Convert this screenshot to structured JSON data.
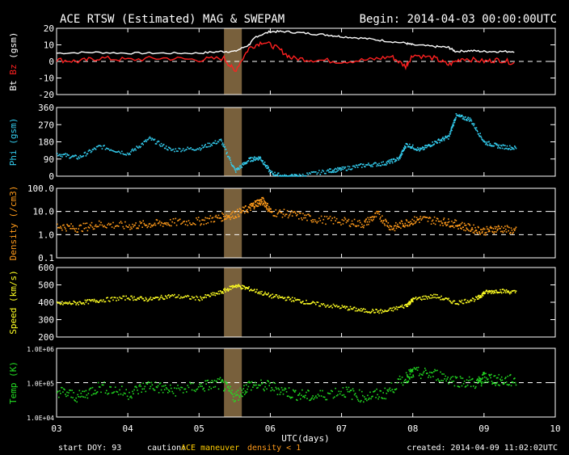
{
  "header": {
    "title": "ACE RTSW (Estimated) MAG & SWEPAM",
    "begin": "Begin: 2014-04-03 00:00:00UTC"
  },
  "footer": {
    "start_doy": "start DOY:  93",
    "caution_label": "caution:",
    "caution_maneuver": "ACE maneuver",
    "caution_density": "density < 1",
    "created": "created: 2014-04-09 11:02:02UTC",
    "xlabel": "UTC(days)"
  },
  "colors": {
    "bt": "#ffffff",
    "bz": "#ff2020",
    "phi": "#33ccee",
    "density": "#ff9a1a",
    "speed": "#ffff22",
    "temp": "#22dd22",
    "maneuver": "#a08050",
    "caution": "#ffcc00"
  },
  "chart_data": [
    {
      "type": "line",
      "panel": "mag",
      "ylabel_parts": [
        "Bt",
        "Bz",
        "(gsm)"
      ],
      "ylim": [
        -20,
        20
      ],
      "ytick_labels": [
        "20",
        "10",
        "0",
        "-10",
        "-20"
      ],
      "dashed_refs": [
        0
      ],
      "series": [
        {
          "name": "Bt",
          "color_key": "bt",
          "x": [
            3.0,
            3.5,
            4.0,
            4.5,
            5.0,
            5.3,
            5.5,
            5.7,
            5.8,
            6.0,
            6.2,
            6.5,
            6.8,
            7.0,
            7.3,
            7.6,
            7.9,
            8.0,
            8.3,
            8.5,
            8.6,
            8.8,
            9.0,
            9.2,
            9.45
          ],
          "y": [
            5,
            5.5,
            5,
            5,
            5,
            6,
            6,
            10,
            15,
            18,
            18,
            17,
            16,
            15,
            14,
            12.5,
            11,
            10,
            9,
            8.5,
            6,
            6.5,
            6,
            6,
            6
          ]
        },
        {
          "name": "Bz",
          "color_key": "bz",
          "x": [
            3.0,
            3.3,
            3.6,
            4.0,
            4.5,
            5.0,
            5.35,
            5.5,
            5.7,
            5.9,
            6.1,
            6.3,
            6.6,
            7.0,
            7.4,
            7.7,
            7.9,
            8.0,
            8.3,
            8.5,
            8.7,
            9.0,
            9.2,
            9.45
          ],
          "y": [
            1,
            0,
            2,
            1,
            2,
            1,
            2,
            -6,
            8,
            12,
            8,
            2,
            1,
            0,
            1,
            3,
            -3,
            4,
            2,
            -2,
            2,
            0,
            1,
            -1
          ]
        }
      ]
    },
    {
      "type": "scatter",
      "panel": "phi",
      "ylabel": "Phi (gsm)",
      "ylim": [
        0,
        360
      ],
      "ytick_labels": [
        "360",
        "270",
        "180",
        "90",
        "0"
      ],
      "series": [
        {
          "name": "Phi",
          "color_key": "phi",
          "x": [
            3.0,
            3.3,
            3.6,
            4.0,
            4.3,
            4.6,
            5.0,
            5.3,
            5.5,
            5.7,
            5.85,
            6.0,
            6.2,
            6.4,
            6.8,
            7.0,
            7.3,
            7.6,
            7.8,
            7.9,
            8.1,
            8.3,
            8.5,
            8.6,
            8.8,
            9.0,
            9.2,
            9.45
          ],
          "y": [
            120,
            100,
            160,
            120,
            200,
            140,
            150,
            190,
            30,
            90,
            100,
            20,
            0,
            5,
            30,
            40,
            60,
            70,
            95,
            170,
            140,
            180,
            210,
            320,
            300,
            180,
            160,
            150
          ]
        }
      ]
    },
    {
      "type": "scatter",
      "panel": "density",
      "ylabel": "Density (/cm3)",
      "yscale": "log",
      "ylim": [
        0.1,
        100.0
      ],
      "ytick_labels": [
        "100.0",
        "10.0",
        "1.0",
        "0.1"
      ],
      "dashed_refs": [
        10.0,
        1.0
      ],
      "series": [
        {
          "name": "Density",
          "color_key": "density",
          "x": [
            3.0,
            3.3,
            3.6,
            4.0,
            4.3,
            4.6,
            5.0,
            5.3,
            5.5,
            5.7,
            5.8,
            5.9,
            6.0,
            6.3,
            6.6,
            7.0,
            7.3,
            7.5,
            7.7,
            7.9,
            8.1,
            8.4,
            8.6,
            8.8,
            9.0,
            9.2,
            9.45
          ],
          "y": [
            2.5,
            2.0,
            3.0,
            2.5,
            3.0,
            3.5,
            4.0,
            6.0,
            8.0,
            15.0,
            25.0,
            30.0,
            10.0,
            8.0,
            5.0,
            4.0,
            3.0,
            8.0,
            2.0,
            3.5,
            5.0,
            4.0,
            3.0,
            2.0,
            1.5,
            2.0,
            1.5
          ]
        }
      ]
    },
    {
      "type": "scatter",
      "panel": "speed",
      "ylabel": "Speed (km/s)",
      "ylim": [
        200,
        600
      ],
      "ytick_labels": [
        "600",
        "500",
        "400",
        "300",
        "200"
      ],
      "series": [
        {
          "name": "Speed",
          "color_key": "speed",
          "x": [
            3.0,
            3.3,
            3.6,
            4.0,
            4.3,
            4.6,
            5.0,
            5.3,
            5.5,
            5.7,
            6.0,
            6.3,
            6.6,
            7.0,
            7.3,
            7.6,
            7.9,
            8.0,
            8.3,
            8.6,
            8.9,
            9.0,
            9.2,
            9.45
          ],
          "y": [
            395,
            400,
            415,
            430,
            420,
            440,
            425,
            460,
            500,
            480,
            440,
            420,
            395,
            375,
            355,
            350,
            385,
            420,
            440,
            400,
            425,
            460,
            470,
            460
          ]
        }
      ]
    },
    {
      "type": "scatter",
      "panel": "temp",
      "ylabel": "Temp (K)",
      "yscale": "log",
      "ylim": [
        10000,
        1000000
      ],
      "ytick_labels": [
        "1.0E+06",
        "1.0E+05",
        "1.0E+04"
      ],
      "dashed_refs": [
        100000
      ],
      "series": [
        {
          "name": "Temp",
          "color_key": "temp",
          "x": [
            3.0,
            3.3,
            3.6,
            4.0,
            4.3,
            4.6,
            5.0,
            5.3,
            5.5,
            5.7,
            6.0,
            6.3,
            6.6,
            7.0,
            7.3,
            7.6,
            7.9,
            8.0,
            8.3,
            8.6,
            8.9,
            9.0,
            9.2,
            9.45
          ],
          "y": [
            60000,
            40000,
            80000,
            50000,
            90000,
            60000,
            80000,
            100000,
            40000,
            90000,
            80000,
            50000,
            40000,
            60000,
            40000,
            50000,
            150000,
            200000,
            180000,
            120000,
            100000,
            150000,
            120000,
            120000
          ]
        }
      ]
    }
  ],
  "xaxis": {
    "xlim": [
      3,
      10
    ],
    "tick_labels": [
      "03",
      "04",
      "05",
      "06",
      "07",
      "08",
      "09",
      "10"
    ],
    "maneuver_range": [
      5.35,
      5.6
    ]
  }
}
